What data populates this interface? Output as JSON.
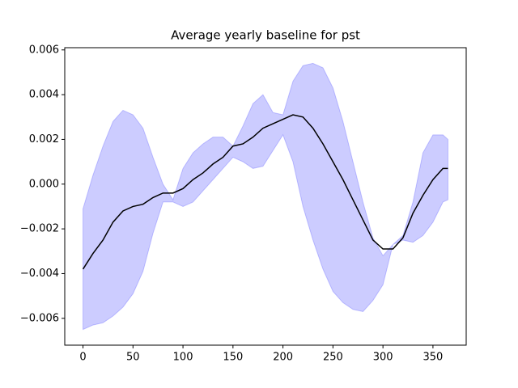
{
  "chart_data": {
    "type": "line",
    "title": "Average yearly baseline for pst",
    "x": [
      0,
      10,
      20,
      30,
      40,
      50,
      60,
      70,
      80,
      90,
      100,
      110,
      120,
      130,
      140,
      150,
      160,
      170,
      180,
      190,
      200,
      210,
      220,
      230,
      240,
      250,
      260,
      270,
      280,
      290,
      300,
      310,
      320,
      330,
      340,
      350,
      360,
      365
    ],
    "mean": {
      "color": "#000000",
      "values": [
        -0.0038,
        -0.0031,
        -0.0025,
        -0.0017,
        -0.0012,
        -0.001,
        -0.0009,
        -0.0006,
        -0.0004,
        -0.0004,
        -0.0002,
        0.0002,
        0.0005,
        0.0009,
        0.0012,
        0.0017,
        0.0018,
        0.0021,
        0.0025,
        0.0027,
        0.0029,
        0.0031,
        0.003,
        0.0025,
        0.0018,
        0.001,
        0.0002,
        -0.0007,
        -0.0016,
        -0.0025,
        -0.0029,
        -0.0029,
        -0.0024,
        -0.0013,
        -0.0005,
        0.0002,
        0.0007,
        0.0007
      ]
    },
    "band": {
      "color": "#0000ff",
      "upper": [
        -0.0011,
        0.0004,
        0.0017,
        0.0028,
        0.0033,
        0.0031,
        0.0025,
        0.0012,
        0.0,
        -0.0007,
        0.0007,
        0.0014,
        0.0018,
        0.0021,
        0.0021,
        0.0017,
        0.0026,
        0.0036,
        0.004,
        0.0032,
        0.0031,
        0.0046,
        0.0053,
        0.0054,
        0.0052,
        0.0043,
        0.0028,
        0.001,
        -0.0008,
        -0.0024,
        -0.0032,
        -0.0027,
        -0.0023,
        -0.0008,
        0.0014,
        0.0022,
        0.0022,
        0.002
      ],
      "lower": [
        -0.0065,
        -0.0063,
        -0.0062,
        -0.0059,
        -0.0055,
        -0.0049,
        -0.0039,
        -0.0022,
        -0.0008,
        -0.0008,
        -0.001,
        -0.0008,
        -0.0003,
        0.0002,
        0.0007,
        0.0012,
        0.001,
        0.0007,
        0.0008,
        0.0015,
        0.0022,
        0.001,
        -0.001,
        -0.0025,
        -0.0038,
        -0.0048,
        -0.0053,
        -0.0056,
        -0.0057,
        -0.0052,
        -0.0045,
        -0.0027,
        -0.0025,
        -0.0026,
        -0.0023,
        -0.0017,
        -0.0008,
        -0.0007
      ]
    },
    "xlim": [
      -18.25,
      383.25
    ],
    "ylim": [
      -0.0072,
      0.0061
    ],
    "xticks": [
      0,
      50,
      100,
      150,
      200,
      250,
      300,
      350
    ],
    "yticks": [
      {
        "value": -0.006,
        "label": "−0.006"
      },
      {
        "value": -0.004,
        "label": "−0.004"
      },
      {
        "value": -0.002,
        "label": "−0.002"
      },
      {
        "value": 0,
        "label": "0.000"
      },
      {
        "value": 0.002,
        "label": "0.002"
      },
      {
        "value": 0.004,
        "label": "0.004"
      },
      {
        "value": 0.006,
        "label": "0.006"
      }
    ]
  }
}
